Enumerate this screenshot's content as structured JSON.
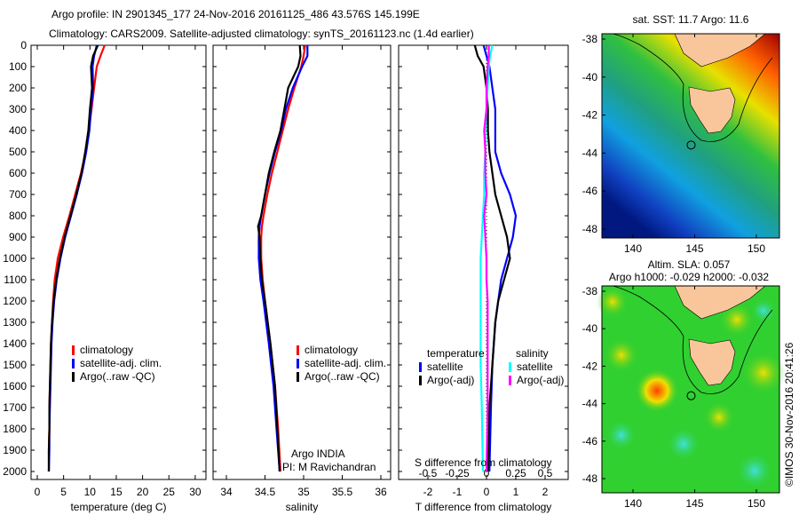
{
  "title_line1": "Argo profile: IN 2901345_177 24-Nov-2016 20161125_486 43.576S 145.199E",
  "title_line2": "Climatology: CARS2009. Satellite-adjusted climatology: synTS_20161123.nc (1.4d earlier)",
  "colors": {
    "climatology": "#ff0000",
    "satellite": "#0000ff",
    "argo": "#000000",
    "s_satellite": "#00ffff",
    "s_argo": "#ff00ff"
  },
  "chart_data": [
    {
      "type": "line",
      "name": "temperature",
      "xlabel": "temperature (deg C)",
      "xlim": [
        -1,
        31
      ],
      "ylim": [
        2050,
        0
      ],
      "xticks": [
        "0",
        "5",
        "10",
        "15",
        "20",
        "25",
        "30"
      ],
      "yticks": [
        "0",
        "100",
        "200",
        "300",
        "400",
        "500",
        "600",
        "700",
        "800",
        "900",
        "1000",
        "1100",
        "1200",
        "1300",
        "1400",
        "1500",
        "1600",
        "1700",
        "1800",
        "1900",
        "2000"
      ],
      "depth": [
        0,
        50,
        100,
        200,
        300,
        400,
        500,
        600,
        700,
        800,
        900,
        1000,
        1100,
        1200,
        1300,
        1400,
        1500,
        1600,
        1700,
        1800,
        1900,
        2000
      ],
      "series": [
        {
          "name": "climatology",
          "values": [
            12.8,
            12.0,
            11.3,
            10.8,
            10.3,
            9.8,
            9.2,
            8.3,
            7.2,
            6.1,
            4.9,
            3.9,
            3.3,
            3.0,
            2.8,
            2.6,
            2.5,
            2.4,
            2.3,
            2.3,
            2.2,
            2.2
          ]
        },
        {
          "name": "satellite-adj. clim.",
          "values": [
            11.3,
            10.8,
            10.5,
            10.6,
            10.2,
            9.9,
            9.3,
            8.5,
            7.5,
            6.4,
            5.3,
            4.4,
            3.7,
            3.2,
            2.9,
            2.7,
            2.6,
            2.5,
            2.4,
            2.3,
            2.3,
            2.2
          ]
        },
        {
          "name": "Argo(..raw -QC)",
          "values": [
            11.5,
            10.6,
            10.2,
            10.4,
            10.0,
            9.7,
            9.1,
            8.4,
            7.4,
            6.3,
            5.2,
            4.3,
            3.6,
            3.1,
            2.8,
            2.6,
            2.5,
            2.4,
            2.3,
            2.3,
            2.2,
            2.2
          ]
        }
      ],
      "legend": [
        "climatology",
        "satellite-adj. clim.",
        "Argo(..raw -QC)"
      ]
    },
    {
      "type": "line",
      "name": "salinity",
      "xlabel": "salinity",
      "xlim": [
        33.82,
        36.1
      ],
      "ylim": [
        2050,
        0
      ],
      "xticks": [
        "34",
        "34.5",
        "35",
        "35.5",
        "36"
      ],
      "depth": [
        0,
        50,
        100,
        200,
        300,
        400,
        500,
        600,
        700,
        800,
        850,
        900,
        1000,
        1100,
        1200,
        1400,
        1600,
        1800,
        2000
      ],
      "series": [
        {
          "name": "climatology",
          "values": [
            35.02,
            35.0,
            34.97,
            34.88,
            34.8,
            34.73,
            34.66,
            34.59,
            34.53,
            34.48,
            34.46,
            34.45,
            34.45,
            34.47,
            34.5,
            34.57,
            34.63,
            34.67,
            34.7
          ]
        },
        {
          "name": "satellite-adj. clim.",
          "values": [
            35.05,
            35.05,
            34.98,
            34.86,
            34.77,
            34.71,
            34.63,
            34.56,
            34.5,
            34.45,
            34.43,
            34.42,
            34.42,
            34.44,
            34.48,
            34.55,
            34.61,
            34.65,
            34.69
          ]
        },
        {
          "name": "Argo(..raw -QC)",
          "values": [
            34.95,
            34.96,
            34.93,
            34.8,
            34.75,
            34.7,
            34.62,
            34.55,
            34.5,
            34.45,
            34.41,
            34.43,
            34.44,
            34.46,
            34.5,
            34.57,
            34.63,
            34.66,
            34.69
          ]
        }
      ],
      "legend": [
        "climatology",
        "satellite-adj. clim.",
        "Argo(..raw -QC)"
      ],
      "annotation": [
        "Argo INDIA",
        "PI: M Ravichandran"
      ]
    },
    {
      "type": "line",
      "name": "difference",
      "xlabel": "T difference from climatology",
      "x2label": "S difference from climatology",
      "xlim": [
        -3,
        2.8
      ],
      "ylim": [
        2050,
        0
      ],
      "xticks": [
        "-2",
        "-1",
        "0",
        "1",
        "2"
      ],
      "x2ticks": [
        "-0.5",
        "-0.25",
        "0",
        "0.25",
        "0.5"
      ],
      "depth": [
        0,
        50,
        100,
        200,
        300,
        400,
        500,
        600,
        700,
        800,
        900,
        1000,
        1100,
        1200,
        1300,
        1500,
        1700,
        2000
      ],
      "series": [
        {
          "name": "temperature satellite",
          "axis": "T",
          "values": [
            -0.1,
            0.0,
            0.1,
            0.2,
            0.3,
            0.3,
            0.3,
            0.5,
            0.8,
            1.0,
            0.9,
            0.7,
            0.5,
            0.4,
            0.3,
            0.2,
            0.15,
            0.1
          ]
        },
        {
          "name": "temperature Argo(-adj)",
          "axis": "T",
          "values": [
            -0.4,
            -0.3,
            -0.1,
            0.0,
            0.05,
            0.05,
            0.1,
            0.2,
            0.3,
            0.5,
            0.7,
            0.8,
            0.6,
            0.4,
            0.3,
            0.2,
            0.1,
            0.05
          ]
        },
        {
          "name": "salinity satellite",
          "axis": "S",
          "values": [
            0.05,
            0.03,
            0.02,
            0.01,
            0.0,
            -0.01,
            -0.01,
            -0.02,
            -0.02,
            -0.03,
            -0.04,
            -0.05,
            -0.05,
            -0.05,
            -0.05,
            -0.05,
            -0.04,
            -0.03
          ]
        },
        {
          "name": "salinity Argo(-adj)",
          "axis": "S",
          "values": [
            0.02,
            0.02,
            0.01,
            0.0,
            0.0,
            -0.02,
            -0.01,
            -0.01,
            0.0,
            -0.02,
            -0.01,
            0.0,
            0.0,
            0.01,
            0.01,
            0.01,
            0.01,
            0.0
          ]
        }
      ],
      "legend_titles": [
        "temperature",
        "salinity"
      ],
      "legend": [
        "satellite",
        "Argo(-adj)",
        "satellite",
        "Argo(-adj)"
      ]
    },
    {
      "type": "heatmap",
      "name": "sst-map",
      "title": "sat. SST: 11.7 Argo: 11.6",
      "xticks": [
        "140",
        "145",
        "150"
      ],
      "yticks": [
        "-38",
        "-40",
        "-42",
        "-44",
        "-46",
        "-48"
      ]
    },
    {
      "type": "heatmap",
      "name": "sla-map",
      "title1": "Altim. SLA: 0.057",
      "title2": "Argo h1000: -0.029 h2000: -0.032",
      "xticks": [
        "140",
        "145",
        "150"
      ],
      "yticks": [
        "-38",
        "-40",
        "-42",
        "-44",
        "-46",
        "-48"
      ]
    }
  ],
  "credit": "©IMOS 30-Nov-2016 20:41:26"
}
